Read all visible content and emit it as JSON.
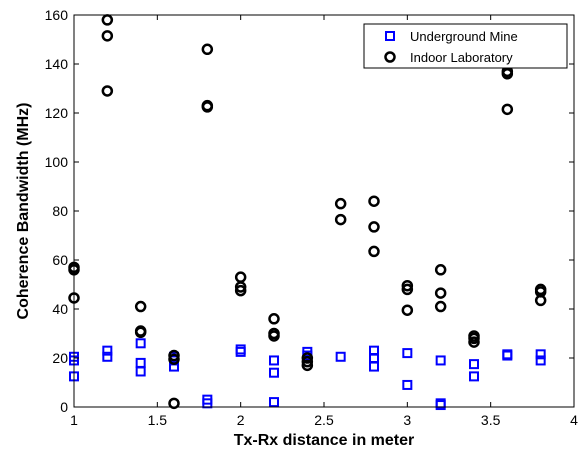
{
  "chart_data": {
    "type": "scatter",
    "title": "",
    "xlabel": "Tx-Rx distance in meter",
    "ylabel": "Coherence Bandwidth (MHz)",
    "xlim": [
      1,
      4
    ],
    "ylim": [
      0,
      160
    ],
    "xticks": [
      "1",
      "1.5",
      "2",
      "2.5",
      "3",
      "3.5",
      "4"
    ],
    "yticks": [
      "0",
      "20",
      "40",
      "60",
      "80",
      "100",
      "120",
      "140",
      "160"
    ],
    "grid": false,
    "legend_position": "top-right",
    "series": [
      {
        "name": "Underground Mine",
        "marker": "square",
        "color": "#0000ff",
        "points": [
          [
            1.0,
            20.5
          ],
          [
            1.0,
            19
          ],
          [
            1.0,
            12.5
          ],
          [
            1.2,
            23
          ],
          [
            1.2,
            20.5
          ],
          [
            1.4,
            26
          ],
          [
            1.4,
            18
          ],
          [
            1.4,
            14.5
          ],
          [
            1.6,
            20.5
          ],
          [
            1.6,
            19
          ],
          [
            1.6,
            16.5
          ],
          [
            1.8,
            3
          ],
          [
            1.8,
            1.5
          ],
          [
            2.0,
            23.5
          ],
          [
            2.0,
            22.5
          ],
          [
            2.2,
            19
          ],
          [
            2.2,
            14
          ],
          [
            2.2,
            2
          ],
          [
            2.4,
            22.5
          ],
          [
            2.4,
            21
          ],
          [
            2.6,
            20.5
          ],
          [
            2.8,
            23
          ],
          [
            2.8,
            20
          ],
          [
            2.8,
            16.5
          ],
          [
            3.0,
            22
          ],
          [
            3.0,
            9
          ],
          [
            3.2,
            19
          ],
          [
            3.2,
            1.5
          ],
          [
            3.2,
            0.8
          ],
          [
            3.4,
            17.5
          ],
          [
            3.4,
            12.5
          ],
          [
            3.6,
            21.5
          ],
          [
            3.6,
            21
          ],
          [
            3.8,
            21.5
          ],
          [
            3.8,
            19
          ]
        ]
      },
      {
        "name": "Indoor Laboratory",
        "marker": "circle",
        "color": "#000000",
        "points": [
          [
            1.0,
            57
          ],
          [
            1.0,
            56
          ],
          [
            1.0,
            44.5
          ],
          [
            1.2,
            158
          ],
          [
            1.2,
            151.5
          ],
          [
            1.2,
            129
          ],
          [
            1.4,
            41
          ],
          [
            1.4,
            31
          ],
          [
            1.4,
            30.5
          ],
          [
            1.6,
            21
          ],
          [
            1.6,
            19.5
          ],
          [
            1.6,
            1.5
          ],
          [
            1.8,
            146
          ],
          [
            1.8,
            123
          ],
          [
            1.8,
            122.5
          ],
          [
            2.0,
            53
          ],
          [
            2.0,
            49
          ],
          [
            2.0,
            47.5
          ],
          [
            2.2,
            36
          ],
          [
            2.2,
            30
          ],
          [
            2.2,
            29
          ],
          [
            2.4,
            20
          ],
          [
            2.4,
            18.5
          ],
          [
            2.4,
            17
          ],
          [
            2.6,
            83
          ],
          [
            2.6,
            76.5
          ],
          [
            2.8,
            84
          ],
          [
            2.8,
            73.5
          ],
          [
            2.8,
            63.5
          ],
          [
            3.0,
            49.5
          ],
          [
            3.0,
            48
          ],
          [
            3.0,
            39.5
          ],
          [
            3.2,
            56
          ],
          [
            3.2,
            46.5
          ],
          [
            3.2,
            41
          ],
          [
            3.4,
            29
          ],
          [
            3.4,
            28
          ],
          [
            3.4,
            26.5
          ],
          [
            3.6,
            137
          ],
          [
            3.6,
            136
          ],
          [
            3.6,
            121.5
          ],
          [
            3.8,
            48
          ],
          [
            3.8,
            47
          ],
          [
            3.8,
            43.5
          ]
        ]
      }
    ]
  }
}
